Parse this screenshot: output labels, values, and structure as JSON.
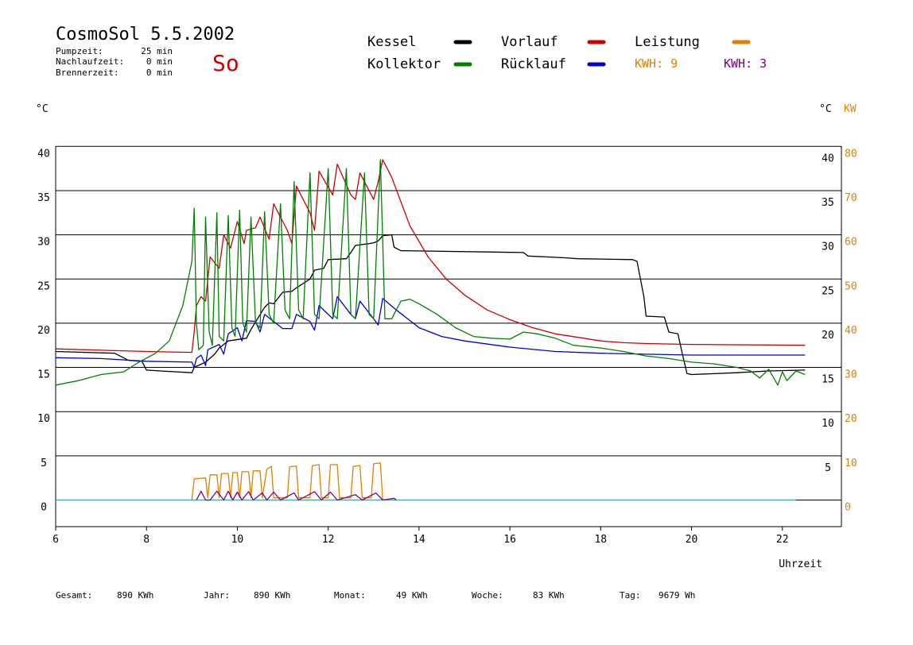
{
  "header": {
    "title": "CosmoSol 5.5.2002",
    "day": "So",
    "info": [
      {
        "label": "Pumpzeit:",
        "value": "25 min"
      },
      {
        "label": "Nachlaufzeit:",
        "value": "0 min"
      },
      {
        "label": "Brennerzeit:",
        "value": "0 min"
      }
    ]
  },
  "legend": {
    "kessel": "Kessel",
    "kollektor": "Kollektor",
    "vorlauf": "Vorlauf",
    "ruecklauf": "Rücklauf",
    "leistung": "Leistung",
    "kwh1": "KWH: 9",
    "kwh2": "KWH: 3"
  },
  "footer": [
    {
      "label": "Gesamt:",
      "value": "890 KWh"
    },
    {
      "label": "Jahr:",
      "value": "890 KWh"
    },
    {
      "label": "Monat:",
      "value": "49 KWh"
    },
    {
      "label": "Woche:",
      "value": "83 KWh"
    },
    {
      "label": "Tag:",
      "value": "9679 Wh"
    }
  ],
  "colors": {
    "kessel": "#000000",
    "kollektor": "#008000",
    "vorlauf": "#cc0000",
    "ruecklauf": "#0000cc",
    "leistung": "#e08000",
    "kwh2": "#800080",
    "zero": "#00cccc",
    "day": "#cc0000"
  },
  "chart_data": {
    "type": "line",
    "xlabel": "Uhrzeit",
    "ylabel_left": "°C",
    "ylabel_right_c": "°C",
    "ylabel_right_kw": "KW",
    "xlim": [
      6,
      23.3
    ],
    "ylim": [
      -3,
      42
    ],
    "xticks": [
      6,
      8,
      10,
      12,
      14,
      16,
      18,
      20,
      22
    ],
    "yticks": [
      0,
      5,
      10,
      15,
      20,
      25,
      30,
      35,
      40
    ],
    "right_c_ticks": [
      5,
      10,
      15,
      20,
      25,
      30,
      35,
      40
    ],
    "right_kw_ticks": [
      0,
      10,
      20,
      30,
      40,
      50,
      60,
      70,
      80
    ],
    "grid": true,
    "series": [
      {
        "name": "Kessel",
        "key": "kessel",
        "points": [
          [
            6.0,
            16.8
          ],
          [
            7.3,
            16.6
          ],
          [
            7.6,
            15.8
          ],
          [
            7.9,
            15.7
          ],
          [
            8.0,
            14.7
          ],
          [
            8.3,
            14.6
          ],
          [
            9.0,
            14.4
          ],
          [
            9.05,
            15.0
          ],
          [
            9.3,
            15.6
          ],
          [
            9.5,
            16.5
          ],
          [
            9.6,
            17.2
          ],
          [
            9.8,
            18.0
          ],
          [
            10.2,
            18.3
          ],
          [
            10.3,
            19.3
          ],
          [
            10.6,
            21.8
          ],
          [
            10.7,
            22.3
          ],
          [
            10.8,
            22.2
          ],
          [
            11.0,
            23.5
          ],
          [
            11.2,
            23.6
          ],
          [
            11.3,
            24.0
          ],
          [
            11.6,
            25.0
          ],
          [
            11.7,
            26.0
          ],
          [
            11.8,
            26.1
          ],
          [
            11.9,
            26.2
          ],
          [
            12.0,
            27.2
          ],
          [
            12.4,
            27.3
          ],
          [
            12.5,
            28.0
          ],
          [
            12.6,
            28.8
          ],
          [
            12.9,
            29.0
          ],
          [
            13.0,
            29.1
          ],
          [
            13.1,
            29.3
          ],
          [
            13.2,
            29.9
          ],
          [
            13.4,
            30.0
          ],
          [
            13.45,
            28.6
          ],
          [
            13.6,
            28.2
          ],
          [
            16.3,
            28.0
          ],
          [
            16.4,
            27.6
          ],
          [
            17.2,
            27.4
          ],
          [
            17.5,
            27.3
          ],
          [
            18.7,
            27.2
          ],
          [
            18.8,
            27.0
          ],
          [
            18.95,
            23.0
          ],
          [
            19.0,
            20.8
          ],
          [
            19.4,
            20.7
          ],
          [
            19.5,
            19.0
          ],
          [
            19.7,
            18.8
          ],
          [
            19.8,
            16.5
          ],
          [
            19.9,
            14.3
          ],
          [
            20.0,
            14.2
          ],
          [
            21.0,
            14.4
          ],
          [
            21.7,
            14.6
          ],
          [
            22.5,
            14.7
          ]
        ]
      },
      {
        "name": "Vorlauf",
        "key": "vorlauf",
        "points": [
          [
            6.0,
            17.1
          ],
          [
            8.0,
            16.8
          ],
          [
            9.0,
            16.7
          ],
          [
            9.05,
            19.0
          ],
          [
            9.1,
            22.0
          ],
          [
            9.2,
            23.0
          ],
          [
            9.3,
            22.5
          ],
          [
            9.4,
            27.5
          ],
          [
            9.6,
            26.2
          ],
          [
            9.7,
            30.0
          ],
          [
            9.85,
            28.5
          ],
          [
            10.0,
            31.5
          ],
          [
            10.15,
            29.0
          ],
          [
            10.2,
            30.5
          ],
          [
            10.4,
            30.8
          ],
          [
            10.5,
            32.0
          ],
          [
            10.7,
            29.5
          ],
          [
            10.8,
            33.5
          ],
          [
            11.1,
            30.5
          ],
          [
            11.2,
            29.0
          ],
          [
            11.3,
            35.5
          ],
          [
            11.6,
            32.5
          ],
          [
            11.7,
            30.5
          ],
          [
            11.8,
            37.2
          ],
          [
            12.1,
            34.5
          ],
          [
            12.2,
            38.0
          ],
          [
            12.5,
            34.5
          ],
          [
            12.6,
            34.0
          ],
          [
            12.7,
            37.0
          ],
          [
            13.0,
            34.0
          ],
          [
            13.1,
            36.0
          ],
          [
            13.2,
            38.5
          ],
          [
            13.4,
            36.5
          ],
          [
            13.8,
            31.0
          ],
          [
            14.2,
            27.5
          ],
          [
            14.6,
            25.0
          ],
          [
            15.0,
            23.2
          ],
          [
            15.5,
            21.5
          ],
          [
            16.0,
            20.4
          ],
          [
            16.5,
            19.5
          ],
          [
            17.0,
            18.8
          ],
          [
            17.5,
            18.4
          ],
          [
            18.0,
            18.0
          ],
          [
            18.5,
            17.8
          ],
          [
            19.0,
            17.7
          ],
          [
            20.0,
            17.6
          ],
          [
            22.5,
            17.5
          ]
        ]
      },
      {
        "name": "Rücklauf",
        "key": "ruecklauf",
        "points": [
          [
            6.0,
            16.1
          ],
          [
            7.0,
            16.0
          ],
          [
            8.0,
            15.7
          ],
          [
            9.0,
            15.6
          ],
          [
            9.05,
            15.0
          ],
          [
            9.1,
            16.0
          ],
          [
            9.2,
            16.4
          ],
          [
            9.3,
            15.2
          ],
          [
            9.35,
            17.0
          ],
          [
            9.6,
            17.6
          ],
          [
            9.7,
            16.5
          ],
          [
            9.8,
            18.8
          ],
          [
            10.0,
            19.5
          ],
          [
            10.1,
            18.0
          ],
          [
            10.2,
            20.3
          ],
          [
            10.4,
            20.2
          ],
          [
            10.5,
            19.0
          ],
          [
            10.6,
            21.0
          ],
          [
            10.8,
            20.2
          ],
          [
            11.0,
            19.4
          ],
          [
            11.2,
            19.4
          ],
          [
            11.3,
            21.0
          ],
          [
            11.6,
            20.2
          ],
          [
            11.7,
            19.2
          ],
          [
            11.8,
            22.0
          ],
          [
            12.1,
            20.5
          ],
          [
            12.2,
            23.0
          ],
          [
            12.5,
            21.0
          ],
          [
            12.6,
            20.5
          ],
          [
            12.7,
            22.5
          ],
          [
            13.0,
            20.5
          ],
          [
            13.1,
            19.8
          ],
          [
            13.2,
            22.8
          ],
          [
            13.5,
            21.5
          ],
          [
            14.0,
            19.5
          ],
          [
            14.5,
            18.5
          ],
          [
            15.0,
            18.0
          ],
          [
            16.0,
            17.3
          ],
          [
            17.0,
            16.8
          ],
          [
            18.0,
            16.6
          ],
          [
            19.0,
            16.5
          ],
          [
            20.0,
            16.4
          ],
          [
            22.5,
            16.4
          ]
        ]
      },
      {
        "name": "Kollektor",
        "key": "kollektor",
        "points": [
          [
            6.0,
            13.0
          ],
          [
            6.5,
            13.5
          ],
          [
            7.0,
            14.2
          ],
          [
            7.5,
            14.5
          ],
          [
            7.8,
            15.5
          ],
          [
            8.2,
            16.6
          ],
          [
            8.5,
            18.0
          ],
          [
            8.8,
            22.0
          ],
          [
            9.0,
            27.0
          ],
          [
            9.05,
            33.0
          ],
          [
            9.1,
            20.0
          ],
          [
            9.15,
            17.0
          ],
          [
            9.25,
            17.5
          ],
          [
            9.3,
            32.0
          ],
          [
            9.38,
            19.0
          ],
          [
            9.45,
            17.5
          ],
          [
            9.55,
            32.5
          ],
          [
            9.6,
            18.5
          ],
          [
            9.7,
            18.0
          ],
          [
            9.8,
            32.2
          ],
          [
            9.88,
            19.5
          ],
          [
            9.95,
            18.5
          ],
          [
            10.05,
            32.8
          ],
          [
            10.12,
            20.0
          ],
          [
            10.2,
            19.0
          ],
          [
            10.3,
            32.0
          ],
          [
            10.4,
            20.0
          ],
          [
            10.5,
            19.5
          ],
          [
            10.6,
            32.6
          ],
          [
            10.7,
            21.0
          ],
          [
            10.8,
            20.0
          ],
          [
            10.95,
            33.5
          ],
          [
            11.05,
            21.5
          ],
          [
            11.15,
            20.5
          ],
          [
            11.25,
            36.0
          ],
          [
            11.35,
            21.5
          ],
          [
            11.45,
            20.5
          ],
          [
            11.6,
            37.0
          ],
          [
            11.7,
            21.0
          ],
          [
            11.8,
            20.5
          ],
          [
            12.0,
            37.5
          ],
          [
            12.1,
            21.0
          ],
          [
            12.2,
            20.5
          ],
          [
            12.4,
            37.5
          ],
          [
            12.5,
            21.0
          ],
          [
            12.6,
            20.5
          ],
          [
            12.8,
            37.0
          ],
          [
            12.9,
            21.0
          ],
          [
            13.0,
            20.5
          ],
          [
            13.15,
            38.5
          ],
          [
            13.25,
            20.5
          ],
          [
            13.4,
            20.5
          ],
          [
            13.6,
            22.5
          ],
          [
            13.8,
            22.7
          ],
          [
            14.0,
            22.2
          ],
          [
            14.4,
            21.0
          ],
          [
            14.8,
            19.5
          ],
          [
            15.2,
            18.5
          ],
          [
            15.6,
            18.3
          ],
          [
            16.0,
            18.2
          ],
          [
            16.3,
            19.0
          ],
          [
            16.6,
            18.8
          ],
          [
            17.0,
            18.3
          ],
          [
            17.4,
            17.5
          ],
          [
            18.0,
            17.2
          ],
          [
            18.5,
            16.8
          ],
          [
            19.0,
            16.3
          ],
          [
            19.5,
            16.0
          ],
          [
            20.0,
            15.6
          ],
          [
            20.5,
            15.4
          ],
          [
            21.0,
            15.0
          ],
          [
            21.3,
            14.6
          ],
          [
            21.5,
            13.8
          ],
          [
            21.7,
            14.8
          ],
          [
            21.9,
            13.0
          ],
          [
            22.0,
            14.5
          ],
          [
            22.1,
            13.5
          ],
          [
            22.3,
            14.6
          ],
          [
            22.5,
            14.2
          ]
        ]
      },
      {
        "name": "Leistung",
        "key": "leistung",
        "scale": "kw",
        "points": [
          [
            9.0,
            0
          ],
          [
            9.05,
            4.8
          ],
          [
            9.3,
            5.0
          ],
          [
            9.35,
            0.5
          ],
          [
            9.4,
            5.7
          ],
          [
            9.55,
            5.7
          ],
          [
            9.6,
            0.5
          ],
          [
            9.65,
            6.0
          ],
          [
            9.8,
            6.0
          ],
          [
            9.85,
            0.5
          ],
          [
            9.9,
            6.2
          ],
          [
            10.0,
            6.2
          ],
          [
            10.05,
            0.5
          ],
          [
            10.1,
            6.4
          ],
          [
            10.25,
            6.4
          ],
          [
            10.3,
            0.5
          ],
          [
            10.35,
            6.6
          ],
          [
            10.5,
            6.6
          ],
          [
            10.55,
            0.5
          ],
          [
            10.65,
            7.0
          ],
          [
            10.75,
            7.6
          ],
          [
            10.8,
            0.5
          ],
          [
            11.1,
            0.5
          ],
          [
            11.15,
            7.5
          ],
          [
            11.3,
            7.7
          ],
          [
            11.35,
            0.5
          ],
          [
            11.6,
            0.5
          ],
          [
            11.65,
            7.8
          ],
          [
            11.8,
            8.0
          ],
          [
            11.85,
            0.5
          ],
          [
            12.0,
            0.5
          ],
          [
            12.05,
            8.0
          ],
          [
            12.2,
            8.0
          ],
          [
            12.25,
            0.5
          ],
          [
            12.5,
            0.5
          ],
          [
            12.55,
            7.6
          ],
          [
            12.7,
            7.8
          ],
          [
            12.75,
            0.5
          ],
          [
            12.95,
            0.5
          ],
          [
            13.0,
            8.2
          ],
          [
            13.15,
            8.4
          ],
          [
            13.2,
            0
          ]
        ]
      },
      {
        "name": "KWH",
        "key": "kwh2",
        "scale": "kw",
        "points": [
          [
            9.1,
            0
          ],
          [
            9.2,
            2.0
          ],
          [
            9.3,
            0
          ],
          [
            9.4,
            0
          ],
          [
            9.55,
            2.0
          ],
          [
            9.7,
            0
          ],
          [
            9.8,
            2.0
          ],
          [
            9.9,
            0
          ],
          [
            10.0,
            1.8
          ],
          [
            10.1,
            0
          ],
          [
            10.25,
            1.9
          ],
          [
            10.35,
            0
          ],
          [
            10.55,
            1.6
          ],
          [
            10.65,
            0
          ],
          [
            10.8,
            1.8
          ],
          [
            10.95,
            0
          ],
          [
            11.25,
            1.6
          ],
          [
            11.35,
            0
          ],
          [
            11.7,
            1.9
          ],
          [
            11.85,
            0
          ],
          [
            12.05,
            1.8
          ],
          [
            12.2,
            0
          ],
          [
            12.6,
            1.2
          ],
          [
            12.75,
            0
          ],
          [
            13.05,
            1.6
          ],
          [
            13.2,
            0
          ],
          [
            13.45,
            0.4
          ],
          [
            13.5,
            0
          ]
        ]
      }
    ]
  }
}
